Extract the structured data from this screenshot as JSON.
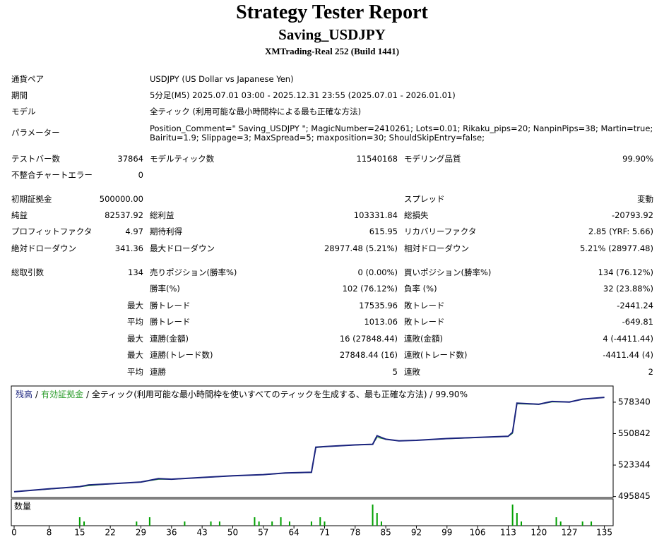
{
  "header": {
    "title": "Strategy Tester Report",
    "subtitle": "Saving_USDJPY",
    "build": "XMTrading-Real 252 (Build 1441)"
  },
  "info": [
    {
      "label": "通貨ペア",
      "value": [
        "USDJPY (US Dollar vs Japanese Yen)"
      ]
    },
    {
      "label": "期間",
      "value": [
        "5分足(M5) 2025.07.01 03:00 - 2025.12.31 23:55 (2025.07.01 - 2026.01.01)"
      ]
    },
    {
      "label": "モデル",
      "value": [
        "全ティック (利用可能な最小時間枠による最も正確な方法)"
      ]
    },
    {
      "label": "パラメーター",
      "value": [
        "Position_Comment=\" Saving_USDJPY \"; MagicNumber=2410261; Lots=0.01; Rikaku_pips=20; NanpinPips=38; Martin=true;",
        "Bairitu=1.9; Slippage=3; MaxSpread=5; maxposition=30; ShouldSkipEntry=false;"
      ]
    }
  ],
  "stats": [
    {
      "l1": "テストバー数",
      "v1": "37864",
      "l2": "モデルティック数",
      "v2": "11540168",
      "l3": "モデリング品質",
      "v3": "99.90%"
    },
    {
      "l1": "不整合チャートエラー",
      "v1": "0"
    },
    {
      "l1": "初期証拠金",
      "v1": "500000.00",
      "l3": "スプレッド",
      "v3": "変動"
    },
    {
      "l1": "純益",
      "v1": "82537.92",
      "l2": "総利益",
      "v2": "103331.84",
      "l3": "総損失",
      "v3": "-20793.92"
    },
    {
      "l1": "プロフィットファクタ",
      "v1": "4.97",
      "l2": "期待利得",
      "v2": "615.95",
      "l3": "リカバリーファクタ",
      "v3": "2.85 (YRF: 5.66)"
    },
    {
      "l1": "絶対ドローダウン",
      "v1": "341.36",
      "l2": "最大ドローダウン",
      "v2": "28977.48 (5.21%)",
      "l3": "相対ドローダウン",
      "v3": "5.21% (28977.48)"
    },
    {
      "l1": "総取引数",
      "v1": "134",
      "l2": "売りポジション(勝率%)",
      "v2": "0 (0.00%)",
      "l3": "買いポジション(勝率%)",
      "v3": "134 (76.12%)"
    },
    {
      "l2": "勝率(%)",
      "v2": "102 (76.12%)",
      "l3": "負率 (%)",
      "v3": "32 (23.88%)"
    },
    {
      "v1": "最大",
      "l2": "勝トレード",
      "v2": "17535.96",
      "l3": "敗トレード",
      "v3": "-2441.24"
    },
    {
      "v1": "平均",
      "l2": "勝トレード",
      "v2": "1013.06",
      "l3": "敗トレード",
      "v3": "-649.81"
    },
    {
      "v1": "最大",
      "l2": "連勝(金額)",
      "v2": "16 (27848.44)",
      "l3": "連敗(金額)",
      "v3": "4 (-4411.44)"
    },
    {
      "v1": "最大",
      "l2": "連勝(トレード数)",
      "v2": "27848.44 (16)",
      "l3": "連敗(トレード数)",
      "v3": "-4411.44 (4)"
    },
    {
      "v1": "平均",
      "l2": "連勝",
      "v2": "5",
      "l3": "連敗",
      "v3": "2"
    }
  ],
  "chart_data": {
    "type": "line",
    "legend_separator": "/",
    "legend_suffix": "/ 全ティック(利用可能な最小時間枠を使いすべてのティックを生成する、最も正確な方法) / 99.90%",
    "x": [
      0,
      8,
      15,
      17,
      22,
      29,
      33,
      36,
      43,
      50,
      57,
      62,
      68,
      69,
      71,
      78,
      82,
      83,
      85,
      88,
      92,
      99,
      106,
      113,
      114,
      115,
      120,
      123,
      127,
      130,
      135
    ],
    "series": [
      {
        "name": "残高",
        "color": "#1a237e",
        "values": [
          500000,
          502500,
          504500,
          506000,
          507000,
          508500,
          511500,
          511000,
          512500,
          514000,
          515000,
          516500,
          517000,
          539000,
          539500,
          541000,
          541500,
          549000,
          546000,
          544500,
          545000,
          546500,
          547500,
          548500,
          552000,
          577500,
          576500,
          579000,
          578500,
          581000,
          582537.92
        ]
      },
      {
        "name": "有効証拠金",
        "color": "#2e9e2e",
        "values": [
          500000,
          502300,
          504300,
          505200,
          506800,
          508300,
          510800,
          510900,
          512300,
          513800,
          514800,
          516200,
          516800,
          538500,
          539300,
          540800,
          541300,
          547500,
          545800,
          544400,
          544900,
          546300,
          547300,
          548300,
          551000,
          576800,
          576300,
          578500,
          578400,
          580800,
          582537.92
        ]
      }
    ],
    "xlim": [
      0,
      137
    ],
    "ylim": [
      495000,
      592500
    ],
    "yticks": [
      578340,
      550842,
      523344,
      495845
    ],
    "xticks": [
      0,
      8,
      15,
      22,
      29,
      36,
      43,
      50,
      57,
      64,
      71,
      78,
      85,
      92,
      99,
      106,
      113,
      120,
      127,
      135
    ],
    "volume": {
      "name": "数量",
      "color": "#00a000",
      "ylim": [
        0,
        0.06
      ],
      "x": [
        15,
        16,
        28,
        31,
        39,
        45,
        47,
        55,
        56,
        59,
        61,
        63,
        68,
        70,
        71,
        82,
        83,
        84,
        114,
        115,
        116,
        124,
        125,
        130,
        132
      ],
      "values": [
        0.02,
        0.01,
        0.01,
        0.02,
        0.01,
        0.01,
        0.01,
        0.02,
        0.01,
        0.01,
        0.02,
        0.01,
        0.01,
        0.02,
        0.01,
        0.05,
        0.03,
        0.01,
        0.05,
        0.03,
        0.01,
        0.02,
        0.01,
        0.01,
        0.01
      ]
    }
  }
}
